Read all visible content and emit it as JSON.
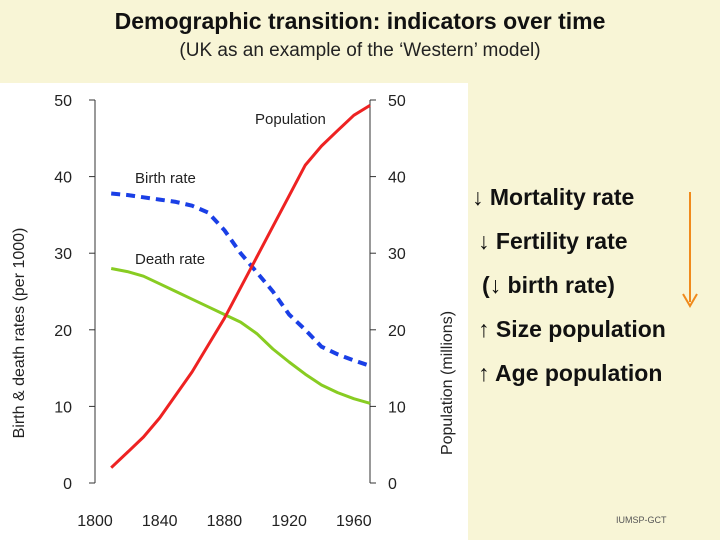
{
  "header": {
    "title": "Demographic transition: indicators over time",
    "subtitle": "(UK as an example of the ‘Western’ model)"
  },
  "chart_data": {
    "type": "line",
    "title": "Demographic transition: indicators over time",
    "subtitle": "(UK as an example of the ‘Western’ model)",
    "xlabel": "",
    "ylabel": "Birth & death rates (per 1000)",
    "y2label": "Population (millions)",
    "xlim": [
      1800,
      1970
    ],
    "ylim": [
      0,
      50
    ],
    "y2lim": [
      0,
      50
    ],
    "x_ticks": [
      1800,
      1840,
      1880,
      1920,
      1960
    ],
    "y_ticks": [
      0,
      10,
      20,
      30,
      40,
      50
    ],
    "y2_ticks": [
      0,
      10,
      20,
      30,
      40,
      50
    ],
    "grid": false,
    "series": [
      {
        "name": "Birth rate",
        "axis": "left",
        "color": "#1a3fe6",
        "style": "dashed",
        "x": [
          1810,
          1820,
          1830,
          1840,
          1850,
          1860,
          1870,
          1880,
          1890,
          1900,
          1910,
          1920,
          1930,
          1940,
          1950,
          1960,
          1970
        ],
        "values": [
          37.8,
          37.6,
          37.3,
          37.0,
          36.7,
          36.2,
          35.3,
          33.0,
          30.0,
          27.5,
          25.0,
          22.0,
          20.0,
          17.8,
          16.8,
          16.0,
          15.3
        ]
      },
      {
        "name": "Death rate",
        "axis": "left",
        "color": "#88cc22",
        "style": "solid",
        "x": [
          1810,
          1820,
          1830,
          1840,
          1850,
          1860,
          1870,
          1880,
          1890,
          1900,
          1910,
          1920,
          1930,
          1940,
          1950,
          1960,
          1970
        ],
        "values": [
          28.0,
          27.6,
          27.0,
          26.0,
          25.0,
          24.0,
          23.0,
          22.0,
          21.0,
          19.5,
          17.5,
          15.8,
          14.2,
          12.8,
          11.8,
          11.0,
          10.4
        ]
      },
      {
        "name": "Population",
        "axis": "right",
        "color": "#ee2222",
        "style": "solid",
        "x": [
          1810,
          1820,
          1830,
          1840,
          1850,
          1860,
          1870,
          1880,
          1890,
          1900,
          1910,
          1920,
          1930,
          1940,
          1950,
          1960,
          1970
        ],
        "values": [
          2.0,
          4.0,
          6.0,
          8.5,
          11.5,
          14.5,
          18.0,
          21.5,
          25.5,
          29.5,
          33.5,
          37.5,
          41.5,
          44.0,
          46.0,
          48.0,
          49.3
        ]
      }
    ],
    "annotations": [
      "Population",
      "Birth rate",
      "Death rate"
    ]
  },
  "indicators": [
    "↓ Mortality rate",
    "↓ Fertility rate",
    "(↓ birth rate)",
    "↑ Size population",
    "↑ Age population"
  ],
  "credit": "IUMSP-GCT",
  "colors": {
    "background": "#f8f5d6",
    "arrow": "#f08a1c"
  }
}
